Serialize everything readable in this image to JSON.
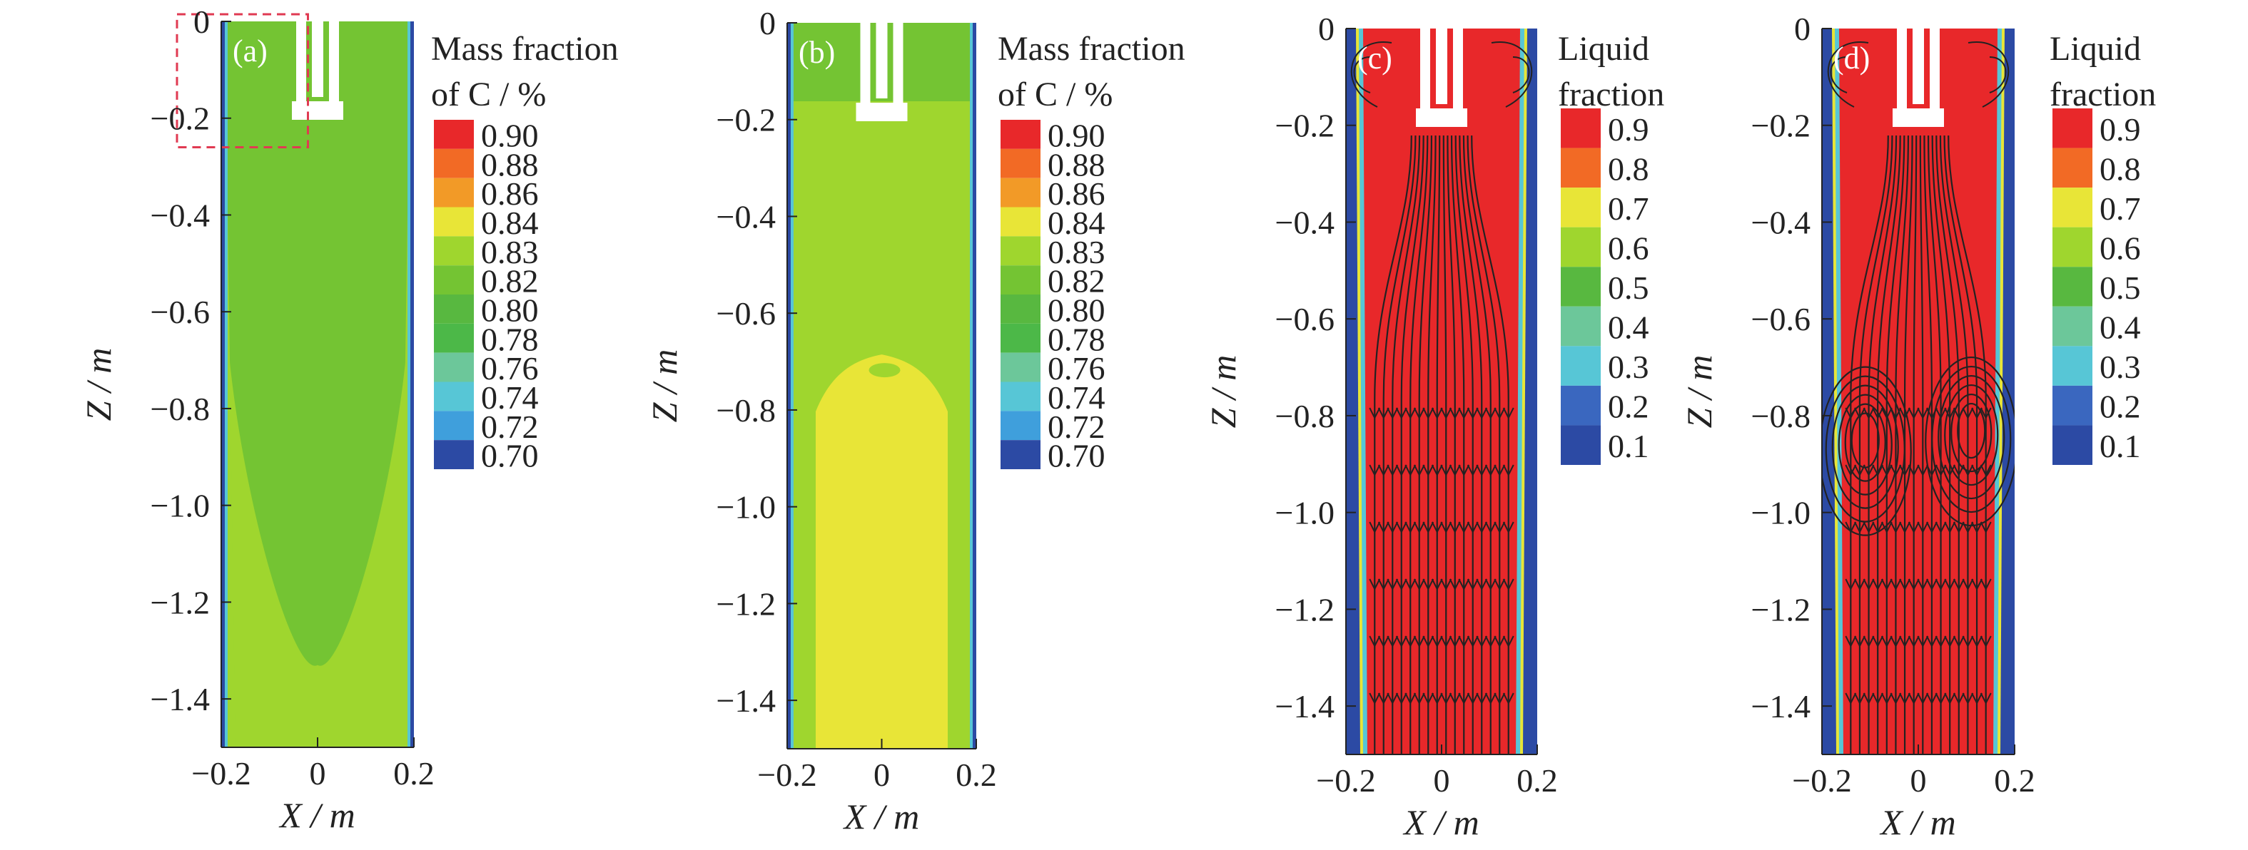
{
  "colors": {
    "red": "#e8282a",
    "orange": "#f26a25",
    "dark_orange": "#f29a27",
    "yellow": "#e8e537",
    "yellow_green": "#9fd62e",
    "green": "#74c433",
    "mid_green": "#58b840",
    "dark_green": "#4cb848",
    "teal": "#6cc79a",
    "aqua": "#57c6d6",
    "sky": "#3f9fdc",
    "blue": "#3a67bf",
    "dark_blue": "#2c4aa4",
    "plot_green": "#85c735",
    "plot_yellow": "#e8e53a",
    "plot_red": "#e8282a",
    "streamline": "#222222",
    "highlight_box": "#e03a52"
  },
  "chart_data": [
    {
      "panel": "(a)",
      "type": "heatmap",
      "xlabel": "X / m",
      "ylabel": "Z / m",
      "xlim": [
        -0.2,
        0.2
      ],
      "ylim": [
        -1.5,
        0
      ],
      "x_ticks": [
        "-0.2",
        "0",
        "0.2"
      ],
      "y_ticks": [
        "0",
        "-0.2",
        "-0.4",
        "-0.6",
        "-0.8",
        "-1.0",
        "-1.2",
        "-1.4"
      ],
      "legend_title": [
        "Mass fraction",
        "of C / %"
      ],
      "legend_levels": [
        "0.90",
        "0.88",
        "0.86",
        "0.84",
        "0.83",
        "0.82",
        "0.80",
        "0.78",
        "0.76",
        "0.74",
        "0.72",
        "0.70"
      ],
      "legend_colors": [
        "#e8282a",
        "#f26a25",
        "#f29a27",
        "#e8e537",
        "#9fd62e",
        "#74c433",
        "#58b840",
        "#4cb848",
        "#6cc79a",
        "#57c6d6",
        "#3f9fdc",
        "#2c4aa4"
      ],
      "field": {
        "main_level": "0.82",
        "lower_region_level": "0.83",
        "lower_region_boundary_z": -1.33
      },
      "highlight_box": {
        "x": [
          -0.2,
          -0.02
        ],
        "z": [
          -0.26,
          0
        ]
      },
      "streamlines": false
    },
    {
      "panel": "(b)",
      "type": "heatmap",
      "xlabel": "X / m",
      "ylabel": "Z / m",
      "xlim": [
        -0.2,
        0.2
      ],
      "ylim": [
        -1.5,
        0
      ],
      "x_ticks": [
        "-0.2",
        "0",
        "0.2"
      ],
      "y_ticks": [
        "0",
        "-0.2",
        "-0.4",
        "-0.6",
        "-0.8",
        "-1.0",
        "-1.2",
        "-1.4"
      ],
      "legend_title": [
        "Mass fraction",
        "of C / %"
      ],
      "legend_levels": [
        "0.90",
        "0.88",
        "0.86",
        "0.84",
        "0.83",
        "0.82",
        "0.80",
        "0.78",
        "0.76",
        "0.74",
        "0.72",
        "0.70"
      ],
      "legend_colors": [
        "#e8282a",
        "#f26a25",
        "#f29a27",
        "#e8e537",
        "#9fd62e",
        "#74c433",
        "#58b840",
        "#4cb848",
        "#6cc79a",
        "#57c6d6",
        "#3f9fdc",
        "#2c4aa4"
      ],
      "field": {
        "upper_level": "0.83",
        "lower_level": "0.84",
        "interface_z": -0.7
      },
      "streamlines": false
    },
    {
      "panel": "(c)",
      "type": "heatmap",
      "xlabel": "X / m",
      "ylabel": "Z / m",
      "xlim": [
        -0.2,
        0.2
      ],
      "ylim": [
        -1.5,
        0
      ],
      "x_ticks": [
        "-0.2",
        "0",
        "0.2"
      ],
      "y_ticks": [
        "0",
        "-0.2",
        "-0.4",
        "-0.6",
        "-0.8",
        "-1.0",
        "-1.2",
        "-1.4"
      ],
      "legend_title": [
        "Liquid",
        "fraction"
      ],
      "legend_levels": [
        "0.9",
        "0.8",
        "0.7",
        "0.6",
        "0.5",
        "0.4",
        "0.3",
        "0.2",
        "0.1"
      ],
      "legend_colors": [
        "#e8282a",
        "#f26a25",
        "#e8e537",
        "#9fd62e",
        "#58b840",
        "#6cc79a",
        "#57c6d6",
        "#3a67bf",
        "#2c4aa4"
      ],
      "field": {
        "core_level": "0.9",
        "shell_level": "0.1"
      },
      "streamlines": true,
      "vortices": []
    },
    {
      "panel": "(d)",
      "type": "heatmap",
      "xlabel": "X / m",
      "ylabel": "Z / m",
      "xlim": [
        -0.2,
        0.2
      ],
      "ylim": [
        -1.5,
        0
      ],
      "x_ticks": [
        "-0.2",
        "0",
        "0.2"
      ],
      "y_ticks": [
        "0",
        "-0.2",
        "-0.4",
        "-0.6",
        "-0.8",
        "-1.0",
        "-1.2",
        "-1.4"
      ],
      "legend_title": [
        "Liquid",
        "fraction"
      ],
      "legend_levels": [
        "0.9",
        "0.8",
        "0.7",
        "0.6",
        "0.5",
        "0.4",
        "0.3",
        "0.2",
        "0.1"
      ],
      "legend_colors": [
        "#e8282a",
        "#f26a25",
        "#e8e537",
        "#9fd62e",
        "#58b840",
        "#6cc79a",
        "#57c6d6",
        "#3a67bf",
        "#2c4aa4"
      ],
      "field": {
        "core_level": "0.9",
        "shell_level": "0.1"
      },
      "streamlines": true,
      "vortices": [
        {
          "x": -0.11,
          "z": -0.86
        },
        {
          "x": 0.11,
          "z": -0.84
        }
      ]
    }
  ]
}
